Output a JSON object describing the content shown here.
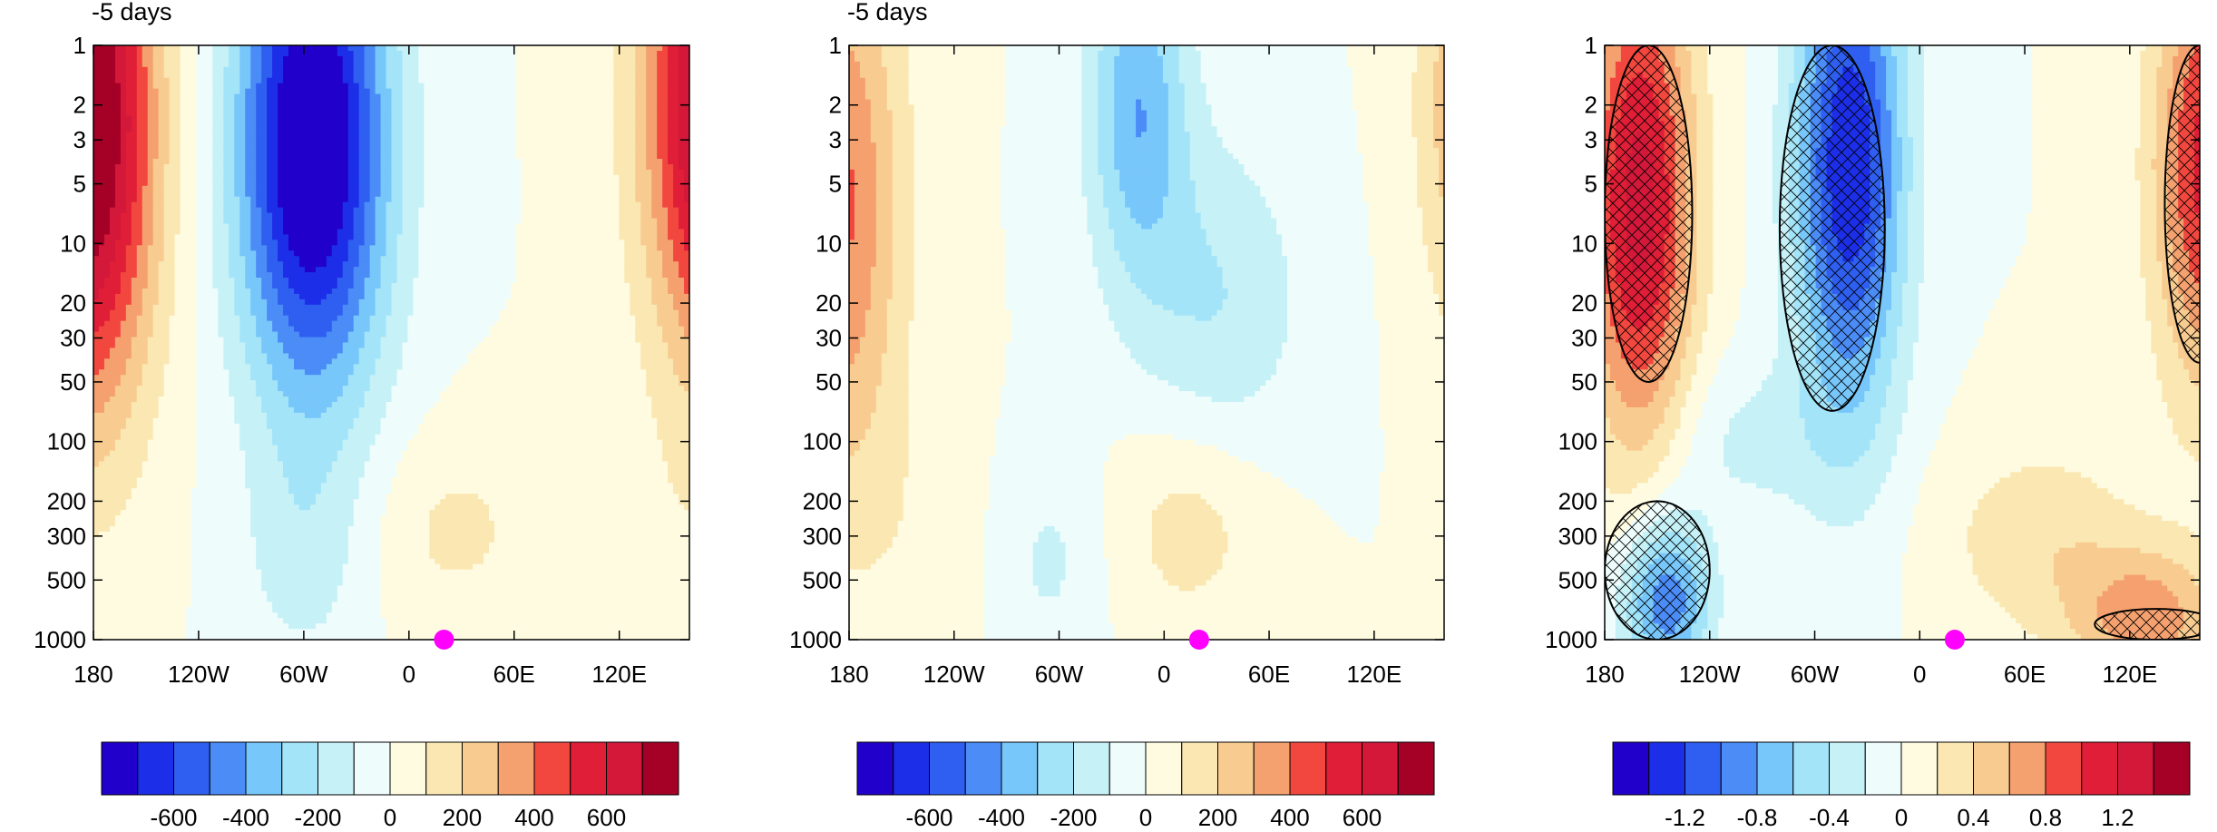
{
  "chart_data": [
    {
      "type": "contour",
      "title": "-5 days",
      "x_ticks": [
        "180",
        "120W",
        "60W",
        "0",
        "60E",
        "120E"
      ],
      "y_ticks": [
        "1",
        "2",
        "3",
        "5",
        "10",
        "20",
        "30",
        "50",
        "100",
        "200",
        "300",
        "500",
        "1000"
      ],
      "y_scale": "log",
      "y_reversed": true,
      "colorbar": {
        "levels": [
          -700,
          -600,
          -500,
          -400,
          -300,
          -200,
          -100,
          0,
          100,
          200,
          300,
          400,
          500,
          600,
          700
        ],
        "labels": [
          "-600",
          "-400",
          "-200",
          "0",
          "200",
          "400",
          "600"
        ]
      },
      "marker": {
        "lon": 20,
        "pressure": 1000,
        "color": "#ff00ff"
      },
      "features": [
        {
          "kind": "positive",
          "lon_range": [
            -180,
            -140
          ],
          "pressure_range": [
            1,
            20
          ],
          "level": 700
        },
        {
          "kind": "negative",
          "lon_range": [
            -100,
            0
          ],
          "pressure_range": [
            1,
            10
          ],
          "level": -700
        },
        {
          "kind": "positive",
          "lon_range": [
            120,
            180
          ],
          "pressure_range": [
            1,
            10
          ],
          "level": 700
        },
        {
          "kind": "positive",
          "lon_range": [
            0,
            60
          ],
          "pressure_range": [
            150,
            700
          ],
          "level": 100
        }
      ]
    },
    {
      "type": "contour",
      "title": "-5 days",
      "x_ticks": [
        "180",
        "120W",
        "60W",
        "0",
        "60E",
        "120E"
      ],
      "y_ticks": [
        "1",
        "2",
        "3",
        "5",
        "10",
        "20",
        "30",
        "50",
        "100",
        "200",
        "300",
        "500",
        "1000"
      ],
      "y_scale": "log",
      "y_reversed": true,
      "colorbar": {
        "levels": [
          -700,
          -600,
          -500,
          -400,
          -300,
          -200,
          -100,
          0,
          100,
          200,
          300,
          400,
          500,
          600,
          700
        ],
        "labels": [
          "-600",
          "-400",
          "-200",
          "0",
          "200",
          "400",
          "600"
        ]
      },
      "marker": {
        "lon": 20,
        "pressure": 1000,
        "color": "#ff00ff"
      },
      "features": [
        {
          "kind": "positive",
          "lon_range": [
            -180,
            -150
          ],
          "pressure_range": [
            1,
            10
          ],
          "level": 400
        },
        {
          "kind": "negative",
          "lon_range": [
            -30,
            0
          ],
          "pressure_range": [
            1,
            5
          ],
          "level": -400
        },
        {
          "kind": "positive",
          "lon_range": [
            150,
            180
          ],
          "pressure_range": [
            1,
            5
          ],
          "level": 400
        },
        {
          "kind": "positive",
          "lon_range": [
            -10,
            40
          ],
          "pressure_range": [
            100,
            600
          ],
          "level": 100
        }
      ]
    },
    {
      "type": "contour",
      "title": "",
      "x_ticks": [
        "180",
        "120W",
        "60W",
        "0",
        "60E",
        "120E"
      ],
      "y_ticks": [
        "1",
        "2",
        "3",
        "5",
        "10",
        "20",
        "30",
        "50",
        "100",
        "200",
        "300",
        "500",
        "1000"
      ],
      "y_scale": "log",
      "y_reversed": true,
      "hatched_significance": true,
      "colorbar": {
        "levels": [
          -1.4,
          -1.2,
          -1.0,
          -0.8,
          -0.6,
          -0.4,
          -0.2,
          0,
          0.2,
          0.4,
          0.6,
          0.8,
          1.0,
          1.2,
          1.4
        ],
        "labels": [
          "-1.2",
          "-0.8",
          "-0.4",
          "0",
          "0.4",
          "0.8",
          "1.2"
        ]
      },
      "marker": {
        "lon": 20,
        "pressure": 1000,
        "color": "#ff00ff"
      },
      "features": [
        {
          "kind": "positive",
          "lon_range": [
            -180,
            -130
          ],
          "pressure_range": [
            1,
            50
          ],
          "level": 1.2
        },
        {
          "kind": "negative",
          "lon_range": [
            -80,
            -20
          ],
          "pressure_range": [
            1,
            70
          ],
          "level": -1.2
        },
        {
          "kind": "positive",
          "lon_range": [
            140,
            180
          ],
          "pressure_range": [
            1,
            40
          ],
          "level": 1.0
        },
        {
          "kind": "negative",
          "lon_range": [
            -180,
            -120
          ],
          "pressure_range": [
            200,
            1000
          ],
          "level": -1.0
        },
        {
          "kind": "positive",
          "lon_range": [
            100,
            170
          ],
          "pressure_range": [
            700,
            1000
          ],
          "level": 0.8
        }
      ]
    }
  ],
  "palette": [
    "#2200cc",
    "#1c2ee8",
    "#2f5ff0",
    "#4b8cf7",
    "#78c7fb",
    "#a3e4f8",
    "#c6f1f7",
    "#eefcfc",
    "#fefbe1",
    "#fbe7b2",
    "#f8cc90",
    "#f5a16f",
    "#f2473f",
    "#e01e37",
    "#d3183a",
    "#a50026"
  ],
  "marker_color": "#ff00ff"
}
